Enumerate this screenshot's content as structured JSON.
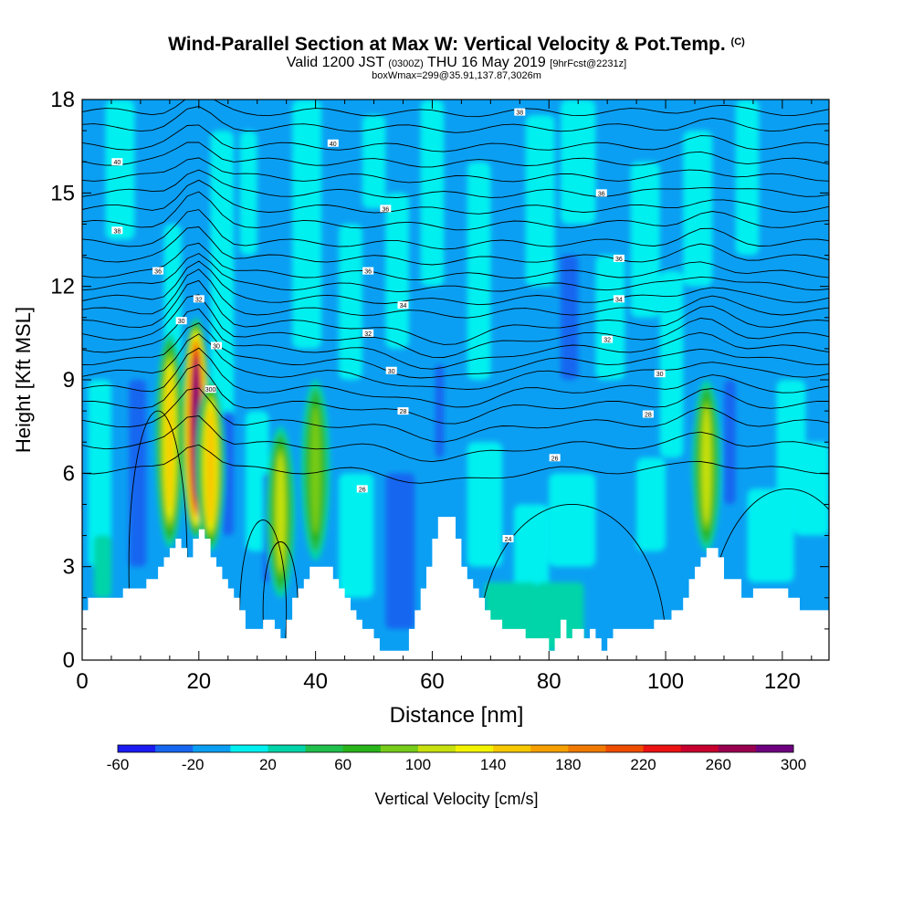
{
  "title": {
    "main": "Wind-Parallel Section at Max W: Vertical Velocity & Pot.Temp.",
    "copyright": "(C)",
    "valid_prefix": "Valid 1200 JST",
    "utc": "(0300Z)",
    "valid_date": "THU 16 May 2019",
    "forecast": "[9hrFcst@2231z]",
    "boxinfo": "boxWmax=299@35.91,137.87,3026m"
  },
  "chart_data": {
    "type": "heatmap",
    "xlabel": "Distance [nm]",
    "ylabel": "Height [Kft MSL]",
    "xlim": [
      0,
      128
    ],
    "ylim": [
      0,
      18
    ],
    "xticks": [
      0,
      20,
      40,
      60,
      80,
      100,
      120
    ],
    "yticks": [
      0,
      3,
      6,
      9,
      12,
      15,
      18
    ],
    "colorbar": {
      "label": "Vertical Velocity [cm/s]",
      "levels": [
        -60,
        -40,
        -20,
        0,
        20,
        40,
        60,
        80,
        100,
        120,
        140,
        160,
        180,
        200,
        220,
        240,
        260,
        280,
        300
      ],
      "tick_labels": [
        -60,
        -20,
        20,
        60,
        100,
        140,
        180,
        220,
        260,
        300
      ],
      "colors": [
        "#1b1bf2",
        "#1766f0",
        "#0b9ff3",
        "#00f0f0",
        "#00d4a8",
        "#21bf4c",
        "#28b41a",
        "#77cb19",
        "#c8e00e",
        "#f3f300",
        "#f7c800",
        "#f5a000",
        "#f07a00",
        "#ef4d00",
        "#eb1313",
        "#c8002e",
        "#9a0050",
        "#6e0080"
      ]
    },
    "terrain_kft": [
      [
        0,
        1.6
      ],
      [
        1,
        2
      ],
      [
        6,
        2
      ],
      [
        7,
        2.3
      ],
      [
        9,
        2.3
      ],
      [
        11,
        2.6
      ],
      [
        12,
        2.6
      ],
      [
        13,
        3
      ],
      [
        14,
        3.3
      ],
      [
        15,
        3.6
      ],
      [
        16,
        3.9
      ],
      [
        17,
        3.6
      ],
      [
        18,
        3.3
      ],
      [
        19,
        3.9
      ],
      [
        20,
        4.2
      ],
      [
        21,
        3.9
      ],
      [
        22,
        3.3
      ],
      [
        23,
        3
      ],
      [
        24,
        2.6
      ],
      [
        25,
        2.3
      ],
      [
        26,
        2
      ],
      [
        27,
        1.6
      ],
      [
        28,
        1
      ],
      [
        30,
        1
      ],
      [
        31,
        1.3
      ],
      [
        33,
        1
      ],
      [
        34,
        0.7
      ],
      [
        35,
        1.3
      ],
      [
        36,
        2
      ],
      [
        37,
        2.3
      ],
      [
        38,
        2.6
      ],
      [
        39,
        3
      ],
      [
        42,
        3
      ],
      [
        43,
        2.6
      ],
      [
        44,
        2.3
      ],
      [
        45,
        2
      ],
      [
        46,
        1.6
      ],
      [
        47,
        1.3
      ],
      [
        48,
        1
      ],
      [
        50,
        0.7
      ],
      [
        51,
        0.3
      ],
      [
        55,
        0.3
      ],
      [
        56,
        1
      ],
      [
        57,
        1.6
      ],
      [
        58,
        2.3
      ],
      [
        59,
        3
      ],
      [
        60,
        3.9
      ],
      [
        61,
        4.6
      ],
      [
        63,
        4.6
      ],
      [
        64,
        3.9
      ],
      [
        65,
        3
      ],
      [
        66,
        2.6
      ],
      [
        67,
        2.3
      ],
      [
        68,
        2
      ],
      [
        69,
        1.6
      ],
      [
        70,
        1.3
      ],
      [
        72,
        1
      ],
      [
        75,
        1
      ],
      [
        76,
        0.7
      ],
      [
        79,
        0.7
      ],
      [
        80,
        0.3
      ],
      [
        81,
        0.7
      ],
      [
        82,
        1.3
      ],
      [
        83,
        0.7
      ],
      [
        84,
        1
      ],
      [
        86,
        0.7
      ],
      [
        87,
        1
      ],
      [
        88,
        0.7
      ],
      [
        89,
        0.3
      ],
      [
        90,
        0.7
      ],
      [
        91,
        1
      ],
      [
        97,
        1
      ],
      [
        98,
        1.3
      ],
      [
        100,
        1.3
      ],
      [
        101,
        1.6
      ],
      [
        103,
        2
      ],
      [
        104,
        2.6
      ],
      [
        105,
        3
      ],
      [
        106,
        3.3
      ],
      [
        107,
        3.6
      ],
      [
        109,
        3.3
      ],
      [
        110,
        2.6
      ],
      [
        113,
        2
      ],
      [
        115,
        2.3
      ],
      [
        120,
        2.3
      ],
      [
        121,
        2
      ],
      [
        123,
        1.6
      ],
      [
        125,
        1.6
      ],
      [
        128,
        1.6
      ]
    ],
    "updraft_cores": [
      {
        "x": 15,
        "zmin": 3.6,
        "zmax": 10.5,
        "peak": 140
      },
      {
        "x": 19.5,
        "zmin": 3.9,
        "zmax": 11.0,
        "peak": 299
      },
      {
        "x": 22,
        "zmin": 3.5,
        "zmax": 9.0,
        "peak": 150
      },
      {
        "x": 34,
        "zmin": 2.0,
        "zmax": 7.5,
        "peak": 100
      },
      {
        "x": 40,
        "zmin": 3.2,
        "zmax": 9.0,
        "peak": 80
      },
      {
        "x": 107,
        "zmin": 3.5,
        "zmax": 9.0,
        "peak": 100
      }
    ],
    "theta_labels": [
      {
        "x": 6,
        "y": 16.0,
        "label": "40"
      },
      {
        "x": 6,
        "y": 13.8,
        "label": "38"
      },
      {
        "x": 13,
        "y": 12.5,
        "label": "36"
      },
      {
        "x": 20,
        "y": 11.6,
        "label": "32"
      },
      {
        "x": 17,
        "y": 10.9,
        "label": "30"
      },
      {
        "x": 23,
        "y": 10.1,
        "label": "30"
      },
      {
        "x": 22,
        "y": 8.7,
        "label": "300"
      },
      {
        "x": 43,
        "y": 16.6,
        "label": "40"
      },
      {
        "x": 52,
        "y": 14.5,
        "label": "36"
      },
      {
        "x": 49,
        "y": 12.5,
        "label": "36"
      },
      {
        "x": 55,
        "y": 11.4,
        "label": "34"
      },
      {
        "x": 49,
        "y": 10.5,
        "label": "32"
      },
      {
        "x": 53,
        "y": 9.3,
        "label": "30"
      },
      {
        "x": 55,
        "y": 8.0,
        "label": "28"
      },
      {
        "x": 48,
        "y": 5.5,
        "label": "26"
      },
      {
        "x": 75,
        "y": 17.6,
        "label": "38"
      },
      {
        "x": 89,
        "y": 15.0,
        "label": "36"
      },
      {
        "x": 92,
        "y": 12.9,
        "label": "36"
      },
      {
        "x": 92,
        "y": 11.6,
        "label": "34"
      },
      {
        "x": 90,
        "y": 10.3,
        "label": "32"
      },
      {
        "x": 99,
        "y": 9.2,
        "label": "30"
      },
      {
        "x": 97,
        "y": 7.9,
        "label": "28"
      },
      {
        "x": 81,
        "y": 6.5,
        "label": "26"
      },
      {
        "x": 73,
        "y": 3.9,
        "label": "24"
      }
    ]
  }
}
